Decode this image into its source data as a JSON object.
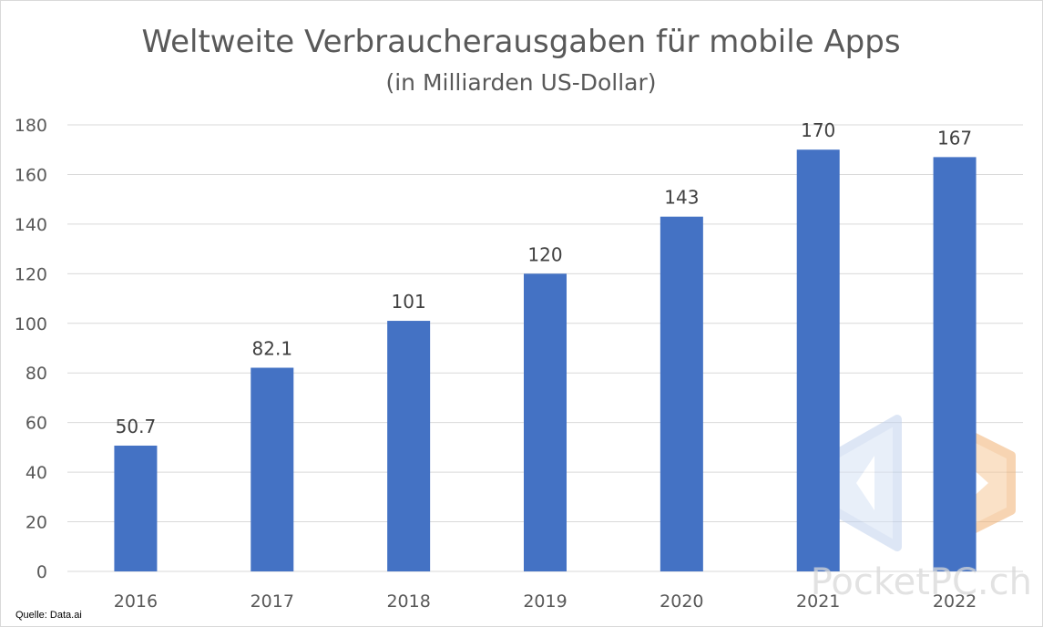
{
  "chart_data": {
    "type": "bar",
    "title": "Weltweite Verbraucherausgaben für mobile Apps",
    "subtitle": "(in Milliarden US-Dollar)",
    "categories": [
      "2016",
      "2017",
      "2018",
      "2019",
      "2020",
      "2021",
      "2022"
    ],
    "values": [
      50.7,
      82.1,
      101,
      120,
      143,
      170,
      167
    ],
    "data_labels": [
      "50.7",
      "82.1",
      "101",
      "120",
      "143",
      "170",
      "167"
    ],
    "xlabel": "",
    "ylabel": "",
    "ylim": [
      0,
      180
    ],
    "yticks": [
      0,
      20,
      40,
      60,
      80,
      100,
      120,
      140,
      160,
      180
    ],
    "grid": true,
    "legend": "none",
    "bar_color": "#4472C4",
    "grid_color": "#d9d9d9"
  },
  "source_note": "Quelle: Data.ai",
  "watermark": {
    "text": "PocketPC.ch",
    "icon": "pocketpc-logo-icon"
  }
}
